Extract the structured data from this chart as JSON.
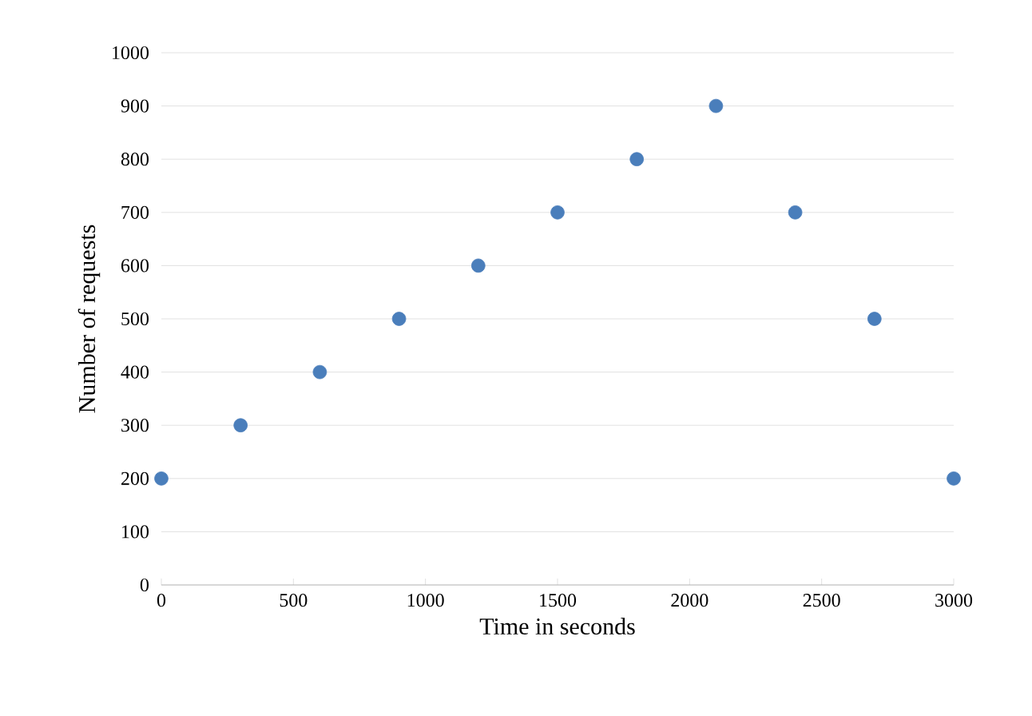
{
  "chart_data": {
    "type": "scatter",
    "x": [
      0,
      300,
      600,
      900,
      1200,
      1500,
      1800,
      2100,
      2400,
      2700,
      3000
    ],
    "series": [
      {
        "color": "#4a7ebb",
        "values": [
          200,
          300,
          400,
          500,
          600,
          700,
          800,
          900,
          700,
          500,
          200
        ]
      }
    ],
    "xlabel": "Time in seconds",
    "ylabel": "Number of requests",
    "xlim": [
      0,
      3000
    ],
    "ylim": [
      0,
      1000
    ],
    "xticks": [
      0,
      500,
      1000,
      1500,
      2000,
      2500,
      3000
    ],
    "yticks": [
      0,
      100,
      200,
      300,
      400,
      500,
      600,
      700,
      800,
      900,
      1000
    ],
    "grid": "y",
    "marker": "circle"
  }
}
